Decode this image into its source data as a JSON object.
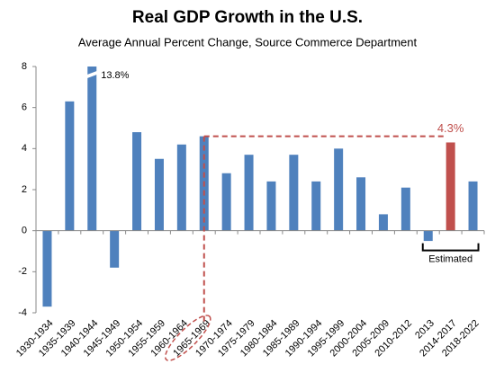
{
  "chart_data": {
    "type": "bar",
    "title": "Real GDP Growth in the U.S.",
    "subtitle": "Average Annual Percent Change, Source Commerce Department",
    "categories": [
      "1930-1934",
      "1935-1939",
      "1940-1944",
      "1945-1949",
      "1950-1954",
      "1955-1959",
      "1960-1964",
      "1965-1969",
      "1970-1974",
      "1975-1979",
      "1980-1984",
      "1985-1989",
      "1990-1994",
      "1995-1999",
      "2000-2004",
      "2005-2009",
      "2010-2012",
      "2013",
      "2014-2017",
      "2018-2022"
    ],
    "values": [
      -3.7,
      6.3,
      13.8,
      -1.8,
      4.8,
      3.5,
      4.2,
      4.6,
      2.8,
      3.7,
      2.4,
      3.7,
      2.4,
      4.0,
      2.6,
      0.8,
      2.1,
      -0.5,
      4.3,
      2.4
    ],
    "value_labels": [
      null,
      null,
      "13.8%",
      null,
      null,
      null,
      null,
      null,
      null,
      null,
      null,
      null,
      null,
      null,
      null,
      null,
      null,
      null,
      "4.3%",
      null
    ],
    "colors": [
      "#4f81bd",
      "#4f81bd",
      "#4f81bd",
      "#4f81bd",
      "#4f81bd",
      "#4f81bd",
      "#4f81bd",
      "#4f81bd",
      "#4f81bd",
      "#4f81bd",
      "#4f81bd",
      "#4f81bd",
      "#4f81bd",
      "#4f81bd",
      "#4f81bd",
      "#4f81bd",
      "#4f81bd",
      "#4f81bd",
      "#c0504d",
      "#4f81bd"
    ],
    "ylim": [
      -4,
      8
    ],
    "yticks": [
      -4,
      -2,
      0,
      2,
      4,
      6,
      8
    ],
    "annotation": "Estimated"
  }
}
